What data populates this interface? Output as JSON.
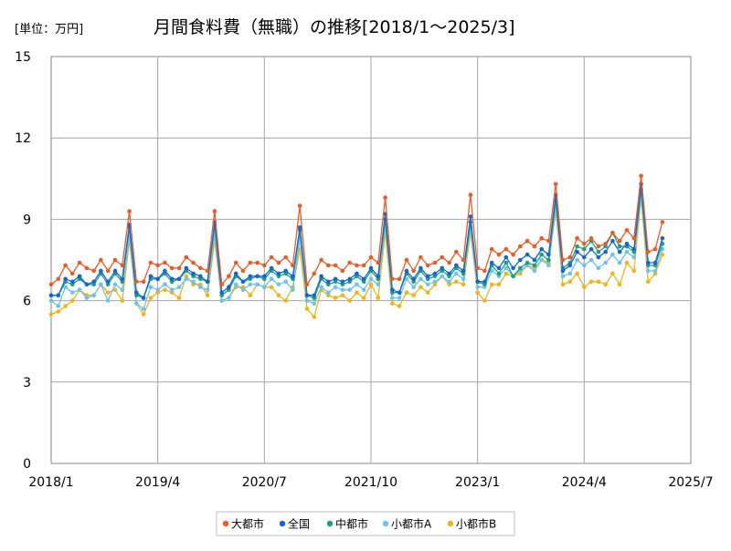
{
  "chart_data": {
    "type": "line",
    "title": "月間食料費（無職）の推移[2018/1～2025/3]",
    "unit_label": "[単位：万円]",
    "xlabel": "",
    "ylabel": "",
    "ylim": [
      0,
      15
    ],
    "yticks": [
      "0",
      "3",
      "6",
      "9",
      "12",
      "15"
    ],
    "xlim": [
      "2018/1",
      "2025/7"
    ],
    "xticks": [
      "2018/1",
      "2019/4",
      "2020/7",
      "2021/10",
      "2023/1",
      "2024/4",
      "2025/7"
    ],
    "grid": true,
    "legend_position": "bottom",
    "x_start": "2018/1",
    "x_end": "2025/3",
    "series": [
      {
        "name": "大都市",
        "color": "#ee5a24",
        "values": [
          6.6,
          6.8,
          7.3,
          7.0,
          7.4,
          7.2,
          7.1,
          7.5,
          7.1,
          7.5,
          7.3,
          9.3,
          6.7,
          6.7,
          7.4,
          7.3,
          7.4,
          7.2,
          7.2,
          7.6,
          7.4,
          7.2,
          7.1,
          9.3,
          6.6,
          6.9,
          7.4,
          7.1,
          7.4,
          7.4,
          7.3,
          7.6,
          7.4,
          7.6,
          7.3,
          9.5,
          6.6,
          7.0,
          7.5,
          7.3,
          7.3,
          7.1,
          7.4,
          7.3,
          7.3,
          7.6,
          7.4,
          9.8,
          6.8,
          6.8,
          7.5,
          7.1,
          7.6,
          7.3,
          7.4,
          7.6,
          7.4,
          7.8,
          7.5,
          9.9,
          7.2,
          7.1,
          7.9,
          7.7,
          7.9,
          7.7,
          8.0,
          8.2,
          8.0,
          8.3,
          8.2,
          10.3,
          7.5,
          7.6,
          8.3,
          8.1,
          8.3,
          8.0,
          8.1,
          8.5,
          8.2,
          8.6,
          8.3,
          10.6,
          7.8,
          7.9,
          8.9
        ]
      },
      {
        "name": "全国",
        "color": "#1565d8",
        "values": [
          6.2,
          6.2,
          6.8,
          6.7,
          6.9,
          6.6,
          6.7,
          7.1,
          6.7,
          7.1,
          6.8,
          8.8,
          6.3,
          6.1,
          6.9,
          6.8,
          7.1,
          6.8,
          6.8,
          7.2,
          7.0,
          6.9,
          6.7,
          8.9,
          6.3,
          6.5,
          7.0,
          6.7,
          6.9,
          6.9,
          6.9,
          7.2,
          7.0,
          7.1,
          6.9,
          8.7,
          6.2,
          6.2,
          6.9,
          6.7,
          6.8,
          6.7,
          6.8,
          7.0,
          6.8,
          7.2,
          6.9,
          9.2,
          6.4,
          6.3,
          7.1,
          6.8,
          7.2,
          6.9,
          7.0,
          7.2,
          7.0,
          7.3,
          7.1,
          9.1,
          6.7,
          6.7,
          7.4,
          7.2,
          7.6,
          7.2,
          7.5,
          7.7,
          7.5,
          7.9,
          7.7,
          9.9,
          7.1,
          7.3,
          7.8,
          7.6,
          7.9,
          7.6,
          7.8,
          8.2,
          7.8,
          8.1,
          7.9,
          10.3,
          7.4,
          7.4,
          8.3
        ]
      },
      {
        "name": "中都市",
        "color": "#1aa37a",
        "values": [
          6.2,
          6.2,
          6.7,
          6.6,
          6.8,
          6.6,
          6.6,
          7.0,
          6.6,
          7.0,
          6.7,
          8.7,
          6.2,
          6.1,
          6.8,
          6.8,
          7.0,
          6.7,
          6.8,
          7.1,
          6.9,
          6.8,
          6.7,
          8.8,
          6.2,
          6.4,
          6.9,
          6.7,
          6.8,
          6.9,
          6.8,
          7.1,
          6.9,
          7.0,
          6.8,
          8.6,
          6.2,
          6.1,
          6.8,
          6.6,
          6.7,
          6.6,
          6.7,
          6.9,
          6.7,
          7.1,
          6.8,
          9.0,
          6.3,
          6.3,
          7.0,
          6.7,
          7.1,
          6.8,
          6.9,
          7.1,
          6.9,
          7.2,
          7.0,
          8.9,
          6.7,
          6.6,
          7.3,
          7.0,
          7.4,
          6.9,
          7.2,
          7.4,
          7.3,
          7.7,
          7.5,
          9.7,
          7.2,
          7.4,
          8.0,
          7.9,
          8.2,
          7.8,
          8.0,
          8.5,
          8.0,
          8.0,
          7.8,
          10.1,
          7.3,
          7.3,
          8.1
        ]
      },
      {
        "name": "小都市A",
        "color": "#6cc4ee",
        "values": [
          6.0,
          5.8,
          6.5,
          6.3,
          6.4,
          6.1,
          6.2,
          6.6,
          6.0,
          6.6,
          6.4,
          8.4,
          5.9,
          5.7,
          6.5,
          6.4,
          6.6,
          6.4,
          6.5,
          6.8,
          6.7,
          6.5,
          6.4,
          8.5,
          6.0,
          6.1,
          6.6,
          6.4,
          6.6,
          6.6,
          6.5,
          6.8,
          6.6,
          6.7,
          6.4,
          8.3,
          6.0,
          5.9,
          6.5,
          6.3,
          6.5,
          6.4,
          6.4,
          6.6,
          6.4,
          6.8,
          6.6,
          8.8,
          6.1,
          6.1,
          6.8,
          6.5,
          6.8,
          6.6,
          6.7,
          6.9,
          6.7,
          7.0,
          6.8,
          8.7,
          6.5,
          6.5,
          7.1,
          6.9,
          7.2,
          6.9,
          7.1,
          7.3,
          7.1,
          7.5,
          7.3,
          9.5,
          6.9,
          7.0,
          7.5,
          7.3,
          7.5,
          7.2,
          7.4,
          7.7,
          7.4,
          7.8,
          7.6,
          9.9,
          7.1,
          7.1,
          7.9
        ]
      },
      {
        "name": "小都市B",
        "color": "#f0b418",
        "values": [
          5.5,
          5.6,
          5.8,
          6.0,
          6.4,
          6.2,
          6.2,
          6.6,
          6.3,
          6.4,
          6.0,
          8.2,
          5.9,
          5.5,
          6.1,
          6.3,
          6.4,
          6.3,
          6.1,
          6.9,
          6.6,
          6.6,
          6.2,
          8.2,
          6.0,
          6.1,
          6.5,
          6.5,
          6.2,
          6.6,
          6.5,
          6.5,
          6.2,
          6.0,
          6.5,
          7.9,
          5.7,
          5.4,
          6.4,
          6.2,
          6.1,
          6.2,
          6.0,
          6.3,
          6.1,
          6.6,
          6.1,
          8.5,
          5.9,
          5.8,
          6.3,
          6.2,
          6.5,
          6.3,
          6.6,
          6.9,
          6.6,
          6.7,
          6.6,
          8.5,
          6.3,
          6.0,
          6.6,
          6.6,
          7.0,
          6.9,
          7.0,
          7.3,
          7.2,
          7.5,
          7.4,
          9.3,
          6.6,
          6.7,
          7.0,
          6.5,
          6.7,
          6.7,
          6.6,
          7.0,
          6.6,
          7.4,
          7.1,
          9.8,
          6.7,
          7.0,
          7.7
        ]
      }
    ]
  }
}
